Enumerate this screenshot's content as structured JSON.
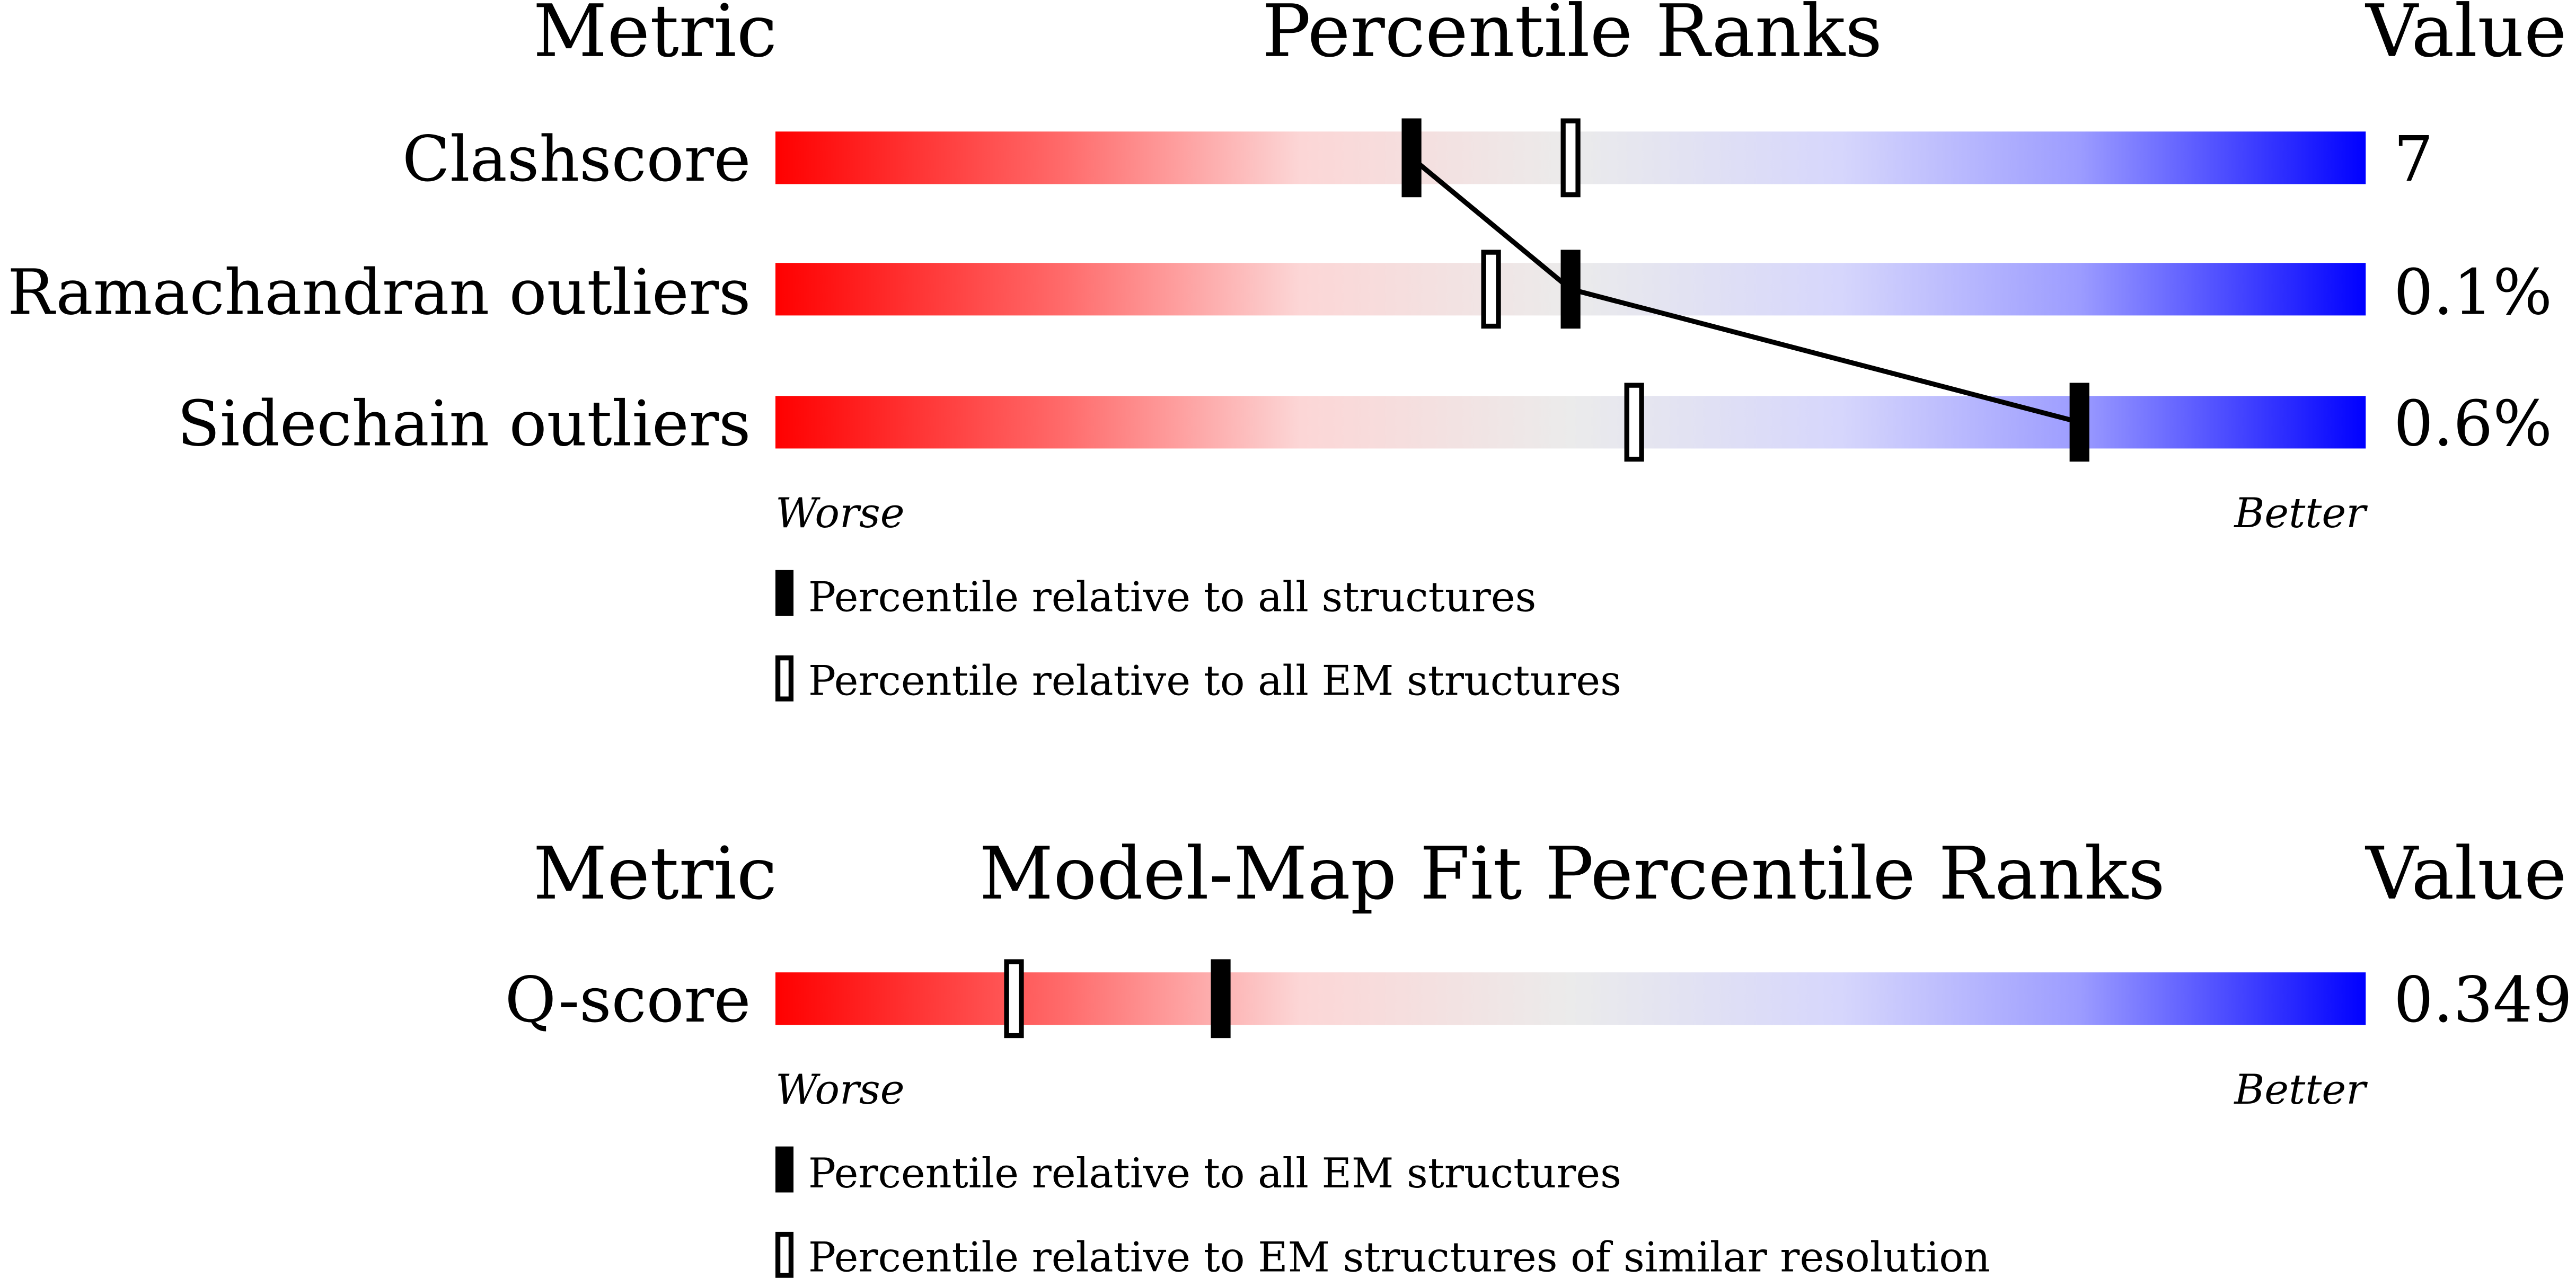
{
  "chart_data": [
    {
      "type": "bar",
      "title": "Percentile Ranks",
      "metric_header": "Metric",
      "value_header": "Value",
      "scale_low_label": "Worse",
      "scale_high_label": "Better",
      "xlim": [
        0,
        100
      ],
      "rows": [
        {
          "metric": "Clashscore",
          "value": "7",
          "percentile_all": 40,
          "percentile_em": 50
        },
        {
          "metric": "Ramachandran outliers",
          "value": "0.1%",
          "percentile_all": 50,
          "percentile_em": 45
        },
        {
          "metric": "Sidechain outliers",
          "value": "0.6%",
          "percentile_all": 82,
          "percentile_em": 54
        }
      ],
      "legend": [
        {
          "marker": "filled",
          "label": "Percentile relative to all structures"
        },
        {
          "marker": "open",
          "label": "Percentile relative to all EM structures"
        }
      ]
    },
    {
      "type": "bar",
      "title": "Model-Map Fit Percentile Ranks",
      "metric_header": "Metric",
      "value_header": "Value",
      "scale_low_label": "Worse",
      "scale_high_label": "Better",
      "xlim": [
        0,
        100
      ],
      "rows": [
        {
          "metric": "Q-score",
          "value": "0.349",
          "percentile_all": 28,
          "percentile_em": 15
        }
      ],
      "legend": [
        {
          "marker": "filled",
          "label": "Percentile relative to all EM structures"
        },
        {
          "marker": "open",
          "label": "Percentile relative to EM structures of similar resolution"
        }
      ]
    }
  ]
}
